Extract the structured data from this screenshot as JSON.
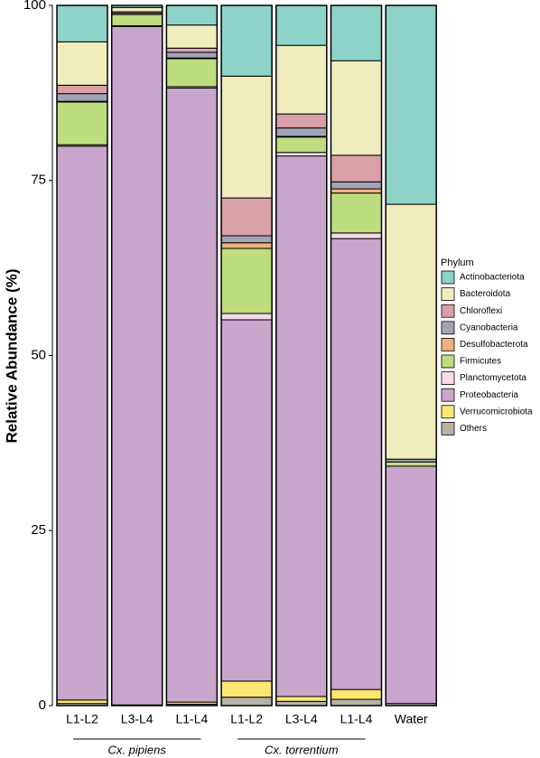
{
  "chart_data": {
    "type": "stacked_bar",
    "y_label": "Relative Abundance (%)",
    "legend_title": "Phylum",
    "legend": "right",
    "categories": [
      "L1-L2",
      "L3-L4",
      "L1-L4",
      "L1-L2",
      "L3-L4",
      "L1-L4",
      "Water"
    ],
    "group_labels": [
      "Cx. pipiens",
      "Cx. torrentium"
    ],
    "ylim": [
      0,
      100
    ],
    "yticks": [
      0,
      25,
      50,
      75,
      100
    ],
    "series": [
      {
        "name": "Actinobacteriota",
        "color": "#8dd3c7",
        "values": [
          5.2,
          0.3,
          2.8,
          10.1,
          5.7,
          7.9,
          28.4
        ]
      },
      {
        "name": "Bacteroidota",
        "color": "#efedbd",
        "values": [
          6.2,
          0.6,
          3.3,
          17.4,
          9.8,
          13.5,
          36.4
        ]
      },
      {
        "name": "Chloroflexi",
        "color": "#d9a0a8",
        "values": [
          1.2,
          0.2,
          0.6,
          5.4,
          2.0,
          3.8,
          0
        ]
      },
      {
        "name": "Cyanobacteria",
        "color": "#a4a3b5",
        "values": [
          1.1,
          0.2,
          0.8,
          1.0,
          1.2,
          1.0,
          0.4
        ]
      },
      {
        "name": "Desulfobacterota",
        "color": "#f0b27a",
        "values": [
          0.1,
          0,
          0.1,
          0.8,
          0.1,
          0.6,
          0
        ]
      },
      {
        "name": "Firmicutes",
        "color": "#bedd7f",
        "values": [
          6.1,
          1.6,
          4.0,
          9.3,
          2.2,
          5.7,
          0.6
        ]
      },
      {
        "name": "Planctomycetota",
        "color": "#f6dbe8",
        "values": [
          0.2,
          0.1,
          0.2,
          0.9,
          0.5,
          0.8,
          0
        ]
      },
      {
        "name": "Proteobacteria",
        "color": "#c9a6cb",
        "values": [
          79.1,
          96.9,
          87.7,
          51.6,
          77.2,
          64.4,
          33.9
        ]
      },
      {
        "name": "Verrucomicrobiota",
        "color": "#fbe771",
        "values": [
          0.5,
          0,
          0.3,
          2.3,
          0.7,
          1.4,
          0
        ]
      },
      {
        "name": "Others",
        "color": "#b5b3a3",
        "values": [
          0.3,
          0.1,
          0.2,
          1.2,
          0.6,
          0.9,
          0.3
        ]
      }
    ]
  }
}
